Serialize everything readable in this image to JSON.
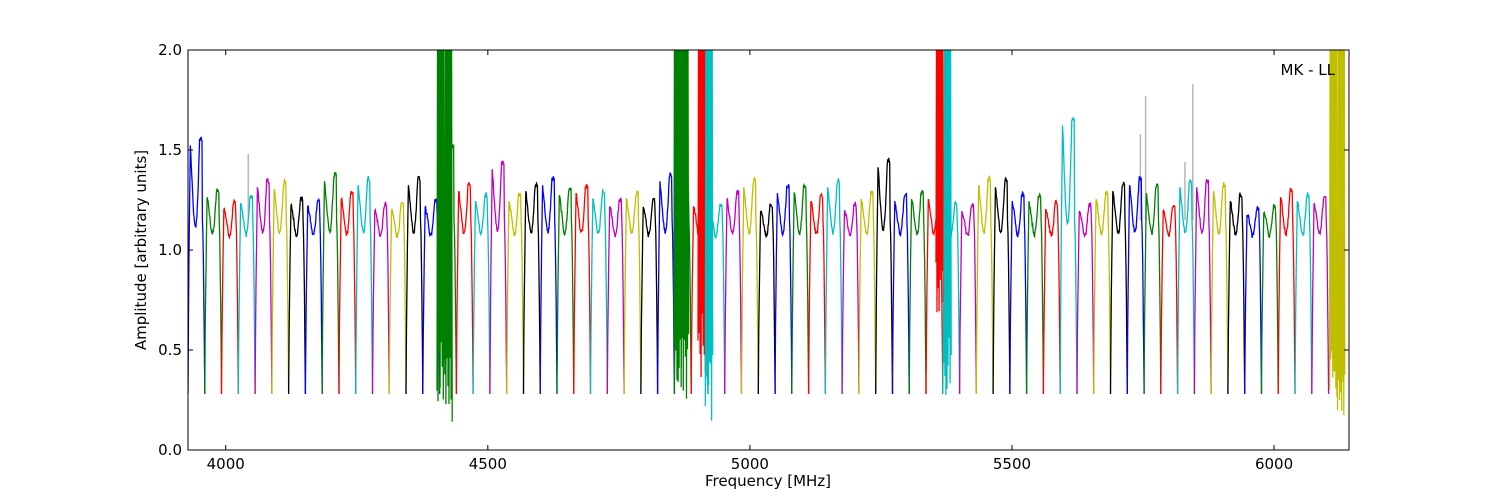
{
  "chart_data": {
    "type": "line",
    "xlabel": "Frequency [MHz]",
    "ylabel": "Amplitude [arbitrary units]",
    "annotation": "MK - LL",
    "xlim": [
      3928,
      6143
    ],
    "ylim": [
      0.0,
      2.0
    ],
    "x_ticks": [
      4000,
      4500,
      5000,
      5500,
      6000
    ],
    "x_tick_labels": [
      "4000",
      "4500",
      "5000",
      "5500",
      "6000"
    ],
    "y_ticks": [
      0.0,
      0.5,
      1.0,
      1.5,
      2.0
    ],
    "y_tick_labels": [
      "0.0",
      "0.5",
      "1.0",
      "1.5",
      "2.0"
    ],
    "grid": false,
    "channel_width_mhz": 32,
    "band_start_mhz": 3928,
    "cycle_colors": [
      "#0000ff",
      "#008000",
      "#ff0000",
      "#00bfbf",
      "#bf00bf",
      "#bfbf00",
      "#000000"
    ],
    "flagged_color": "#bbbbbb",
    "channel_peaks": [
      1.53,
      1.27,
      1.21,
      1.24,
      1.32,
      1.31,
      1.23,
      1.22,
      1.35,
      1.26,
      1.33,
      1.2,
      1.2,
      1.33,
      1.22,
      1.49,
      1.3,
      1.25,
      1.41,
      1.25,
      1.3,
      1.33,
      1.28,
      1.29,
      1.26,
      1.22,
      1.26,
      1.22,
      1.35,
      1.28,
      1.22,
      1.2,
      1.26,
      1.32,
      1.2,
      1.29,
      1.29,
      1.25,
      1.32,
      1.2,
      1.26,
      1.42,
      1.25,
      1.26,
      1.26,
      1.2,
      1.2,
      1.33,
      1.32,
      1.25,
      1.25,
      1.21,
      1.63,
      1.2,
      1.26,
      1.3,
      1.33,
      1.29,
      1.2,
      1.32,
      1.32,
      1.3,
      1.25,
      1.18,
      1.19,
      1.27,
      1.25,
      1.24
    ],
    "spikes": [
      {
        "x": 4410,
        "y_min": 0.2,
        "y_max": 2.0
      },
      {
        "x": 4425,
        "y_min": 0.13,
        "y_max": 2.0
      },
      {
        "x": 4862,
        "y_min": 0.3,
        "y_max": 2.0
      },
      {
        "x": 4876,
        "y_min": 0.25,
        "y_max": 2.0
      },
      {
        "x": 4908,
        "y_min": 0.35,
        "y_max": 2.0
      },
      {
        "x": 4922,
        "y_min": 0.13,
        "y_max": 2.0
      },
      {
        "x": 5362,
        "y_min": 0.68,
        "y_max": 2.0
      },
      {
        "x": 5377,
        "y_min": 0.25,
        "y_max": 2.0
      },
      {
        "x": 6113,
        "y_min": 0.2,
        "y_max": 2.0
      },
      {
        "x": 6128,
        "y_min": 0.17,
        "y_max": 2.0
      }
    ],
    "flagged_spikes": [
      {
        "x": 4043,
        "y_max": 1.48
      },
      {
        "x": 5745,
        "y_max": 1.58
      },
      {
        "x": 5755,
        "y_max": 1.77
      },
      {
        "x": 5830,
        "y_max": 1.44
      },
      {
        "x": 5845,
        "y_max": 1.83
      }
    ]
  }
}
